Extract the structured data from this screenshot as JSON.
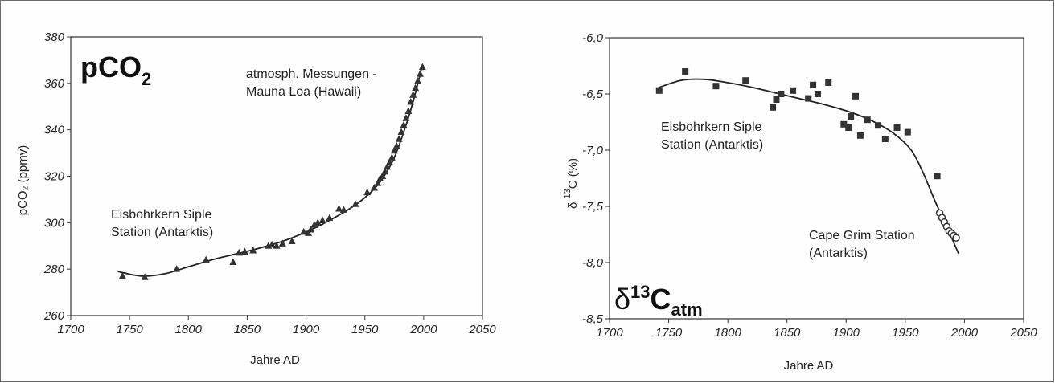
{
  "chart_data": [
    {
      "type": "scatter",
      "title": "pCO",
      "title_sub": "2",
      "xlabel": "Jahre AD",
      "ylabel": "pCO₂ (ppmv)",
      "xlim": [
        1700,
        2050
      ],
      "ylim": [
        260,
        380
      ],
      "x_ticks": [
        "1700",
        "1750",
        "1800",
        "1850",
        "1900",
        "1950",
        "2000",
        "2050"
      ],
      "y_ticks": [
        "380",
        "360",
        "340",
        "320",
        "300",
        "280",
        "260"
      ],
      "annotations": [
        {
          "id": "a1",
          "lines": [
            "atmosph. Messungen -",
            "Mauna Loa (Hawaii)"
          ]
        },
        {
          "id": "a2",
          "lines": [
            "Eisbohrkern Siple",
            "Station (Antarktis)"
          ]
        }
      ],
      "marker": "triangle",
      "series": [
        {
          "points": [
            [
              1744,
              277
            ],
            [
              1763,
              276.5
            ],
            [
              1790,
              280
            ],
            [
              1815,
              284
            ],
            [
              1838,
              283
            ],
            [
              1843,
              287
            ],
            [
              1848,
              287.5
            ],
            [
              1855,
              288
            ],
            [
              1868,
              290
            ],
            [
              1871,
              290.5
            ],
            [
              1875,
              290
            ],
            [
              1880,
              291
            ],
            [
              1888,
              292
            ],
            [
              1898,
              296
            ],
            [
              1902,
              295.5
            ],
            [
              1904,
              297
            ],
            [
              1907,
              299
            ],
            [
              1910,
              300
            ],
            [
              1914,
              301
            ],
            [
              1920,
              302
            ],
            [
              1928,
              306
            ],
            [
              1932,
              305.5
            ],
            [
              1942,
              308
            ],
            [
              1952,
              313
            ],
            [
              1958,
              315
            ],
            [
              1961,
              317
            ],
            [
              1963,
              319
            ],
            [
              1965,
              320
            ],
            [
              1967,
              322
            ],
            [
              1969,
              324
            ],
            [
              1971,
              326
            ],
            [
              1973,
              328
            ],
            [
              1975,
              331
            ],
            [
              1977,
              333
            ],
            [
              1979,
              336
            ],
            [
              1981,
              339
            ],
            [
              1983,
              342
            ],
            [
              1985,
              345
            ],
            [
              1987,
              348
            ],
            [
              1989,
              352
            ],
            [
              1991,
              355
            ],
            [
              1993,
              358
            ],
            [
              1995,
              361
            ],
            [
              1997,
              364
            ],
            [
              1999,
              367
            ]
          ]
        }
      ],
      "fit_curve": [
        [
          1740,
          279
        ],
        [
          1760,
          277
        ],
        [
          1780,
          278
        ],
        [
          1800,
          281
        ],
        [
          1820,
          284
        ],
        [
          1840,
          286.5
        ],
        [
          1860,
          289
        ],
        [
          1880,
          292
        ],
        [
          1900,
          296
        ],
        [
          1920,
          301
        ],
        [
          1940,
          307
        ],
        [
          1955,
          313
        ],
        [
          1965,
          319
        ],
        [
          1975,
          328
        ],
        [
          1985,
          342
        ],
        [
          1992,
          354
        ],
        [
          1999,
          368
        ]
      ]
    },
    {
      "type": "scatter",
      "title": "δ",
      "title_sup": "13",
      "title_main": "C",
      "title_sub": "atm",
      "xlabel": "Jahre AD",
      "ylabel_pre": "δ",
      "ylabel_sup": "13",
      "ylabel_post": "C (%)",
      "xlim": [
        1700,
        2050
      ],
      "ylim": [
        -8.5,
        -6.0
      ],
      "x_ticks": [
        "1700",
        "1750",
        "1800",
        "1850",
        "1900",
        "1950",
        "2000",
        "2050"
      ],
      "y_ticks": [
        "-6,0",
        "-6,5",
        "-7,0",
        "-7,5",
        "-8,0",
        "-8,5"
      ],
      "annotations": [
        {
          "id": "b1",
          "lines": [
            "Eisbohrkern Siple",
            "Station (Antarktis)"
          ]
        },
        {
          "id": "b2",
          "lines": [
            "Cape Grim Station",
            "(Antarktis)"
          ]
        }
      ],
      "series": [
        {
          "marker": "square",
          "points": [
            [
              1742,
              -6.47
            ],
            [
              1764,
              -6.3
            ],
            [
              1790,
              -6.43
            ],
            [
              1815,
              -6.38
            ],
            [
              1838,
              -6.62
            ],
            [
              1841,
              -6.55
            ],
            [
              1845,
              -6.5
            ],
            [
              1855,
              -6.47
            ],
            [
              1868,
              -6.54
            ],
            [
              1872,
              -6.42
            ],
            [
              1876,
              -6.5
            ],
            [
              1885,
              -6.4
            ],
            [
              1898,
              -6.77
            ],
            [
              1902,
              -6.8
            ],
            [
              1904,
              -6.7
            ],
            [
              1908,
              -6.52
            ],
            [
              1912,
              -6.87
            ],
            [
              1918,
              -6.73
            ],
            [
              1927,
              -6.78
            ],
            [
              1933,
              -6.9
            ],
            [
              1943,
              -6.8
            ],
            [
              1952,
              -6.84
            ],
            [
              1977,
              -7.23
            ]
          ]
        },
        {
          "marker": "circle",
          "points": [
            [
              1979,
              -7.56
            ],
            [
              1981,
              -7.6
            ],
            [
              1983,
              -7.64
            ],
            [
              1985,
              -7.68
            ],
            [
              1987,
              -7.72
            ],
            [
              1989,
              -7.74
            ],
            [
              1991,
              -7.76
            ],
            [
              1993,
              -7.78
            ]
          ]
        }
      ],
      "fit_curve": [
        [
          1740,
          -6.45
        ],
        [
          1760,
          -6.38
        ],
        [
          1780,
          -6.37
        ],
        [
          1800,
          -6.4
        ],
        [
          1820,
          -6.44
        ],
        [
          1840,
          -6.49
        ],
        [
          1860,
          -6.54
        ],
        [
          1880,
          -6.59
        ],
        [
          1900,
          -6.65
        ],
        [
          1920,
          -6.73
        ],
        [
          1940,
          -6.85
        ],
        [
          1955,
          -7.0
        ],
        [
          1965,
          -7.2
        ],
        [
          1975,
          -7.45
        ],
        [
          1985,
          -7.68
        ],
        [
          1995,
          -7.92
        ]
      ]
    }
  ]
}
